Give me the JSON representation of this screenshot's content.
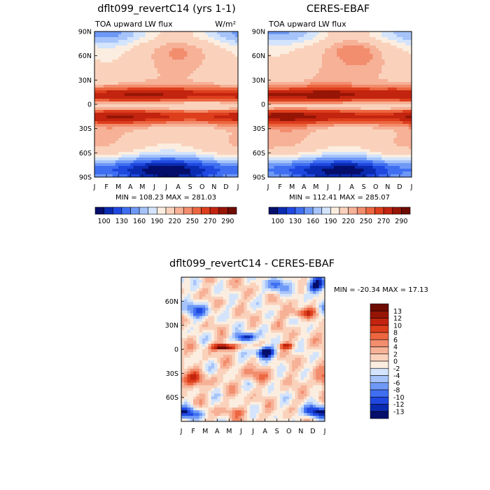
{
  "chart_data": [
    {
      "type": "heatmap",
      "title": "dflt099_revertC14 (yrs 1-1)",
      "subtitle": "TOA upward LW flux",
      "units": "W/m²",
      "x_ticks": [
        "J",
        "F",
        "M",
        "A",
        "M",
        "J",
        "J",
        "A",
        "S",
        "O",
        "N",
        "D",
        "J"
      ],
      "y_ticks": [
        "90N",
        "60N",
        "30N",
        "0",
        "30S",
        "60S",
        "90S"
      ],
      "stats": "MIN = 108.23 MAX = 281.03",
      "colorbar": {
        "labels": [
          "100",
          "130",
          "160",
          "190",
          "220",
          "250",
          "270",
          "290"
        ],
        "colors": [
          "#050e6a",
          "#0a2bb0",
          "#1f48e0",
          "#3f6ff0",
          "#6f99f6",
          "#a6c4fa",
          "#d3e4fc",
          "#fbeee0",
          "#fad2bc",
          "#f6b197",
          "#f28d6d",
          "#ec6640",
          "#dd3e1c",
          "#c2240f",
          "#961505",
          "#6e0b02"
        ]
      }
    },
    {
      "type": "heatmap",
      "title": "CERES-EBAF",
      "subtitle": "TOA upward LW flux",
      "x_ticks": [
        "J",
        "F",
        "M",
        "A",
        "M",
        "J",
        "J",
        "A",
        "S",
        "O",
        "N",
        "D",
        "J"
      ],
      "y_ticks": [
        "90N",
        "60N",
        "30N",
        "0",
        "30S",
        "60S",
        "90S"
      ],
      "stats": "MIN = 112.41 MAX = 285.07",
      "colorbar": {
        "labels": [
          "100",
          "130",
          "160",
          "190",
          "220",
          "250",
          "270",
          "290"
        ]
      }
    },
    {
      "type": "heatmap",
      "title": "dflt099_revertC14 - CERES-EBAF",
      "x_ticks": [
        "J",
        "F",
        "M",
        "A",
        "M",
        "J",
        "J",
        "A",
        "S",
        "O",
        "N",
        "D",
        "J"
      ],
      "y_ticks": [
        "60N",
        "30N",
        "0",
        "30S",
        "60S"
      ],
      "stats": "MIN = -20.34 MAX =  17.13",
      "colorbar": {
        "labels": [
          "13",
          "12",
          "10",
          "8",
          "6",
          "4",
          "2",
          "0",
          "-2",
          "-4",
          "-6",
          "-8",
          "-10",
          "-12",
          "-13"
        ],
        "colors": [
          "#6e0b02",
          "#961505",
          "#c2240f",
          "#dd3e1c",
          "#ec6640",
          "#f28d6d",
          "#f6b197",
          "#fad2bc",
          "#fbeee0",
          "#d3e4fc",
          "#a6c4fa",
          "#6f99f6",
          "#3f6ff0",
          "#1f48e0",
          "#0a2bb0",
          "#050e6a"
        ]
      }
    }
  ]
}
